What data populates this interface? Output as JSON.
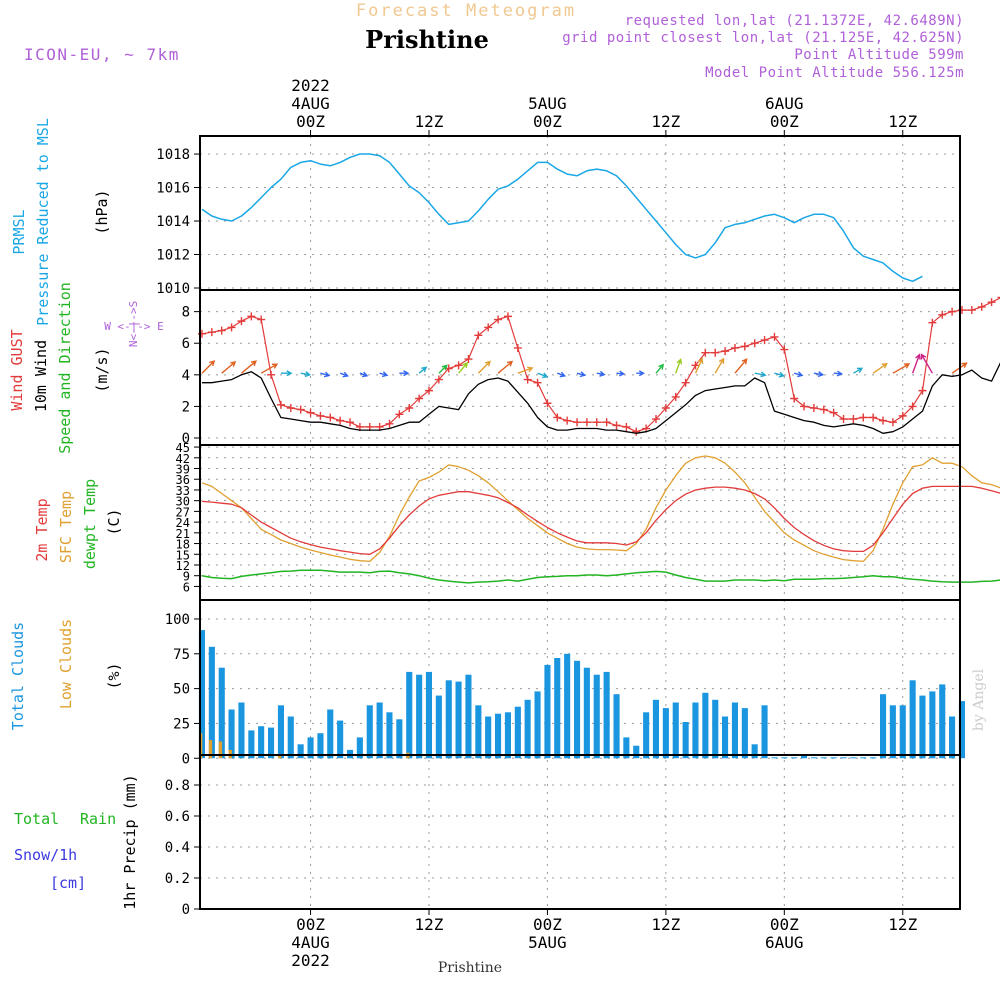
{
  "header": {
    "subtitle": "Forecast Meteogram",
    "location": "Prishtine",
    "model": "ICON-EU, ~ 7km",
    "requested": "requested lon,lat (21.1372E, 42.6489N)",
    "gridpoint": "grid point closest lon,lat (21.125E, 42.625N)",
    "point_altitude": "Point Altitude 599m",
    "model_altitude": "Model Point Altitude 556.125m",
    "footer_location": "Prishtine",
    "credit": "by Angel"
  },
  "colors": {
    "pressure": "#1aa7e6",
    "gust": "#e23b3b",
    "wind": "#000000",
    "direction": "#22b522",
    "temp2m": "#e23b3b",
    "sfc": "#e0a030",
    "dewpt": "#22b522",
    "total_clouds": "#1a96e0",
    "low_clouds": "#e0a030",
    "rain": "#22b522",
    "snow": "#3a3ae0",
    "header_purple": "#b060d8",
    "subtitle": "#f0c890",
    "credit": "#cccccc"
  },
  "time_axis": {
    "top": [
      {
        "t": 0,
        "label": "00Z",
        "date": "4AUG",
        "year": "2022"
      },
      {
        "t": 12,
        "label": "12Z"
      },
      {
        "t": 24,
        "label": "00Z",
        "date": "5AUG"
      },
      {
        "t": 36,
        "label": "12Z"
      },
      {
        "t": 48,
        "label": "00Z",
        "date": "6AUG"
      },
      {
        "t": 60,
        "label": "12Z"
      }
    ],
    "bottom": [
      {
        "t": 0,
        "label": "00Z",
        "date": "4AUG",
        "year": "2022"
      },
      {
        "t": 12,
        "label": "12Z"
      },
      {
        "t": 24,
        "label": "00Z",
        "date": "5AUG"
      },
      {
        "t": 36,
        "label": "12Z"
      },
      {
        "t": 48,
        "label": "00Z",
        "date": "6AUG"
      },
      {
        "t": 60,
        "label": "12Z"
      }
    ]
  },
  "chart_data": [
    {
      "type": "line",
      "id": "pressure",
      "title": "PRMSL Pressure Reduced to MSL",
      "ylabel": "(hPa)",
      "ylim": [
        1010,
        1018.6
      ],
      "yticks": [
        1010,
        1012,
        1014,
        1016,
        1018
      ],
      "series": [
        {
          "name": "PRMSL",
          "x0": -11,
          "dx": 1,
          "values": [
            1014.7,
            1014.3,
            1014.1,
            1014.0,
            1014.3,
            1014.8,
            1015.4,
            1016.0,
            1016.5,
            1017.2,
            1017.5,
            1017.6,
            1017.4,
            1017.3,
            1017.5,
            1017.8,
            1018.0,
            1018.0,
            1017.9,
            1017.5,
            1016.8,
            1016.1,
            1015.7,
            1015.1,
            1014.4,
            1013.8,
            1013.9,
            1014.0,
            1014.6,
            1015.3,
            1015.9,
            1016.1,
            1016.5,
            1017.0,
            1017.5,
            1017.5,
            1017.1,
            1016.8,
            1016.7,
            1017.0,
            1017.1,
            1017.0,
            1016.7,
            1016.1,
            1015.4,
            1014.7,
            1014.0,
            1013.3,
            1012.6,
            1012.0,
            1011.8,
            1012.0,
            1012.7,
            1013.6,
            1013.8,
            1013.9,
            1014.1,
            1014.3,
            1014.4,
            1014.2,
            1013.9,
            1014.2,
            1014.4,
            1014.4,
            1014.2,
            1013.4,
            1012.4,
            1011.9,
            1011.7,
            1011.5,
            1011.0,
            1010.6,
            1010.4,
            1010.7
          ]
        }
      ]
    },
    {
      "type": "line",
      "id": "wind",
      "title": "Wind GUST 10m Wind Speed and Direction",
      "ylabel": "(m/s)",
      "ylim": [
        0,
        8.8
      ],
      "yticks": [
        0,
        2,
        4,
        6,
        8
      ],
      "compass": "W <-|-> E   N <-|-> S",
      "series": [
        {
          "name": "Wind GUST",
          "x0": -11,
          "dx": 1,
          "values": [
            6.6,
            6.7,
            6.8,
            7.0,
            7.4,
            7.7,
            7.5,
            4.0,
            2.1,
            1.9,
            1.8,
            1.6,
            1.4,
            1.3,
            1.1,
            1.0,
            0.7,
            0.7,
            0.7,
            0.9,
            1.5,
            1.9,
            2.5,
            3.0,
            3.7,
            4.4,
            4.6,
            5.0,
            6.5,
            7.0,
            7.5,
            7.7,
            5.7,
            3.7,
            3.5,
            2.2,
            1.3,
            1.1,
            1.0,
            1.0,
            1.0,
            1.0,
            0.8,
            0.7,
            0.4,
            0.6,
            1.2,
            1.9,
            2.6,
            3.5,
            4.6,
            5.4,
            5.4,
            5.5,
            5.7,
            5.8,
            6.0,
            6.2,
            6.4,
            5.6,
            2.5,
            2.0,
            1.9,
            1.8,
            1.6,
            1.2,
            1.2,
            1.3,
            1.3,
            1.1,
            1.0,
            1.4,
            2.0,
            3.0,
            7.3,
            7.8,
            8.0,
            8.1,
            8.1,
            8.3,
            8.6,
            8.9,
            7.2
          ]
        },
        {
          "name": "10m Wind",
          "x0": -11,
          "dx": 1,
          "values": [
            3.5,
            3.5,
            3.6,
            3.7,
            4.0,
            4.2,
            3.8,
            2.5,
            1.3,
            1.2,
            1.1,
            1.0,
            1.0,
            0.9,
            0.8,
            0.6,
            0.5,
            0.5,
            0.5,
            0.6,
            0.8,
            1.0,
            1.0,
            1.5,
            2.0,
            1.9,
            1.8,
            2.8,
            3.4,
            3.7,
            3.8,
            3.6,
            2.9,
            2.2,
            1.3,
            0.7,
            0.5,
            0.5,
            0.6,
            0.6,
            0.6,
            0.5,
            0.5,
            0.4,
            0.3,
            0.4,
            0.6,
            1.1,
            1.6,
            2.1,
            2.7,
            3.0,
            3.1,
            3.2,
            3.3,
            3.3,
            3.8,
            3.5,
            1.7,
            1.5,
            1.3,
            1.1,
            1.0,
            0.8,
            0.7,
            0.8,
            0.9,
            0.8,
            0.6,
            0.3,
            0.4,
            0.7,
            1.2,
            1.7,
            3.3,
            4.0,
            3.9,
            4.0,
            4.3,
            3.8,
            3.6,
            4.9,
            4.0
          ]
        }
      ],
      "directions": [
        {
          "t": -11,
          "deg": 225,
          "speed": 3.5
        },
        {
          "t": -9,
          "deg": 230,
          "speed": 3.6
        },
        {
          "t": -7,
          "deg": 230,
          "speed": 4.0
        },
        {
          "t": -5,
          "deg": 240,
          "speed": 3.8
        },
        {
          "t": -3,
          "deg": 270,
          "speed": 1.3
        },
        {
          "t": -1,
          "deg": 280,
          "speed": 1.0
        },
        {
          "t": 1,
          "deg": 285,
          "speed": 0.9
        },
        {
          "t": 3,
          "deg": 290,
          "speed": 0.6
        },
        {
          "t": 5,
          "deg": 290,
          "speed": 0.5
        },
        {
          "t": 7,
          "deg": 285,
          "speed": 0.5
        },
        {
          "t": 9,
          "deg": 270,
          "speed": 0.8
        },
        {
          "t": 11,
          "deg": 230,
          "speed": 1.0
        },
        {
          "t": 13,
          "deg": 225,
          "speed": 1.6
        },
        {
          "t": 15,
          "deg": 220,
          "speed": 2.3
        },
        {
          "t": 17,
          "deg": 225,
          "speed": 3.3
        },
        {
          "t": 19,
          "deg": 230,
          "speed": 3.8
        },
        {
          "t": 21,
          "deg": 250,
          "speed": 2.9
        },
        {
          "t": 23,
          "deg": 290,
          "speed": 1.3
        },
        {
          "t": 25,
          "deg": 290,
          "speed": 0.6
        },
        {
          "t": 27,
          "deg": 285,
          "speed": 0.6
        },
        {
          "t": 29,
          "deg": 280,
          "speed": 0.5
        },
        {
          "t": 31,
          "deg": 275,
          "speed": 0.4
        },
        {
          "t": 33,
          "deg": 270,
          "speed": 0.4
        },
        {
          "t": 35,
          "deg": 220,
          "speed": 1.6
        },
        {
          "t": 37,
          "deg": 200,
          "speed": 2.7
        },
        {
          "t": 39,
          "deg": 205,
          "speed": 3.1
        },
        {
          "t": 41,
          "deg": 210,
          "speed": 3.3
        },
        {
          "t": 43,
          "deg": 220,
          "speed": 3.8
        },
        {
          "t": 45,
          "deg": 280,
          "speed": 1.5
        },
        {
          "t": 47,
          "deg": 285,
          "speed": 1.1
        },
        {
          "t": 49,
          "deg": 285,
          "speed": 0.7
        },
        {
          "t": 51,
          "deg": 280,
          "speed": 0.9
        },
        {
          "t": 53,
          "deg": 275,
          "speed": 0.6
        },
        {
          "t": 55,
          "deg": 240,
          "speed": 1.2
        },
        {
          "t": 57,
          "deg": 235,
          "speed": 3.3
        },
        {
          "t": 59,
          "deg": 240,
          "speed": 3.9
        },
        {
          "t": 61,
          "deg": 200,
          "speed": 4.3
        },
        {
          "t": 63,
          "deg": 150,
          "speed": 4.9
        },
        {
          "t": 65,
          "deg": 235,
          "speed": 3.6
        }
      ]
    },
    {
      "type": "line",
      "id": "temperature",
      "title": "2m Temp SFC Temp dewpt Temp",
      "ylabel": "(C)",
      "ylim": [
        5,
        45.3
      ],
      "yticks": [
        6,
        9,
        12,
        15,
        18,
        21,
        24,
        27,
        30,
        33,
        36,
        39,
        42,
        45
      ],
      "series": [
        {
          "name": "2m Temp",
          "x0": -11,
          "dx": 1,
          "values": [
            29.8,
            29.6,
            29.3,
            29.0,
            28.0,
            26.0,
            24.0,
            22.5,
            21.0,
            19.5,
            18.5,
            17.7,
            17.0,
            16.5,
            16.0,
            15.6,
            15.2,
            15.0,
            16.5,
            19.5,
            23.0,
            26.0,
            28.5,
            30.5,
            31.5,
            32.0,
            32.5,
            32.5,
            32.0,
            31.5,
            30.8,
            29.5,
            28.0,
            26.0,
            24.2,
            22.5,
            21.0,
            19.8,
            18.7,
            18.2,
            18.2,
            18.2,
            18.0,
            17.6,
            18.5,
            21.0,
            24.5,
            27.5,
            30.0,
            31.8,
            33.0,
            33.5,
            33.8,
            33.8,
            33.5,
            33.0,
            32.0,
            30.5,
            28.0,
            25.0,
            22.5,
            20.5,
            18.8,
            17.5,
            16.5,
            16.0,
            15.8,
            15.8,
            17.5,
            21.0,
            25.0,
            29.0,
            32.0,
            33.5,
            34.0,
            34.0,
            34.0,
            34.0,
            34.0,
            33.5,
            32.8,
            32.0,
            31.0
          ]
        },
        {
          "name": "SFC Temp",
          "x0": -11,
          "dx": 1,
          "values": [
            35.0,
            34.0,
            32.0,
            30.0,
            28.0,
            25.0,
            22.0,
            20.5,
            19.0,
            18.0,
            17.0,
            16.2,
            15.5,
            14.8,
            14.2,
            13.6,
            13.2,
            13.0,
            15.5,
            20.0,
            26.0,
            31.0,
            35.5,
            36.5,
            38.0,
            40.0,
            39.5,
            38.5,
            37.0,
            35.0,
            32.5,
            30.0,
            27.5,
            25.0,
            23.0,
            21.0,
            19.5,
            18.0,
            17.0,
            16.5,
            16.3,
            16.3,
            16.2,
            16.0,
            18.0,
            22.0,
            28.0,
            33.0,
            37.0,
            40.5,
            42.0,
            42.5,
            42.0,
            40.5,
            38.0,
            35.0,
            31.0,
            27.0,
            24.0,
            21.0,
            19.0,
            17.5,
            16.0,
            15.0,
            14.2,
            13.5,
            13.2,
            13.0,
            16.0,
            22.0,
            29.0,
            35.0,
            39.5,
            40.0,
            42.0,
            40.5,
            40.5,
            39.5,
            37.0,
            35.0,
            34.5,
            33.5,
            31.0
          ]
        },
        {
          "name": "dewpt Temp",
          "x0": -11,
          "dx": 1,
          "values": [
            9.0,
            8.5,
            8.3,
            8.2,
            8.8,
            9.2,
            9.5,
            9.8,
            10.2,
            10.3,
            10.5,
            10.5,
            10.5,
            10.3,
            10.0,
            10.0,
            10.0,
            9.8,
            10.2,
            10.3,
            9.8,
            9.5,
            9.0,
            8.3,
            7.8,
            7.5,
            7.2,
            7.0,
            7.2,
            7.3,
            7.5,
            7.8,
            7.5,
            8.0,
            8.5,
            8.7,
            8.8,
            9.0,
            9.0,
            9.2,
            9.2,
            9.0,
            9.2,
            9.5,
            9.8,
            10.0,
            10.2,
            10.0,
            9.2,
            8.5,
            8.0,
            7.5,
            7.5,
            7.5,
            7.8,
            7.8,
            7.8,
            7.6,
            7.8,
            7.6,
            8.0,
            8.0,
            8.0,
            8.2,
            8.2,
            8.3,
            8.5,
            8.7,
            9.0,
            8.7,
            8.7,
            8.3,
            8.0,
            7.8,
            7.5,
            7.3,
            7.2,
            7.2,
            7.2,
            7.4,
            7.5,
            7.8,
            8.5
          ]
        }
      ]
    },
    {
      "type": "bar",
      "id": "clouds",
      "title": "Total Clouds Low Clouds",
      "ylabel": "(%)",
      "ylim": [
        -7,
        105
      ],
      "yticks": [
        0,
        25,
        50,
        75,
        100
      ],
      "series": [
        {
          "name": "Total Clouds",
          "x0": -11,
          "dx": 1,
          "values": [
            92,
            80,
            65,
            35,
            40,
            20,
            23,
            22,
            38,
            30,
            10,
            15,
            18,
            35,
            27,
            6,
            15,
            38,
            40,
            33,
            28,
            62,
            60,
            62,
            45,
            56,
            55,
            60,
            38,
            30,
            32,
            33,
            37,
            42,
            48,
            67,
            72,
            75,
            70,
            65,
            60,
            62,
            46,
            15,
            9,
            33,
            42,
            36,
            40,
            26,
            40,
            47,
            42,
            30,
            40,
            36,
            10,
            38,
            0,
            0,
            0,
            3,
            0,
            0,
            0,
            0,
            0,
            0,
            0,
            46,
            38,
            38,
            56,
            45,
            48,
            53,
            30,
            41
          ]
        },
        {
          "name": "Low Clouds",
          "x0": -11,
          "dx": 1,
          "values": [
            18,
            13,
            12,
            6,
            0,
            0,
            0,
            0,
            2,
            0,
            0,
            0,
            0,
            0,
            0,
            0,
            0,
            0,
            0,
            0,
            0,
            4,
            0,
            0,
            0,
            0,
            0,
            0,
            0,
            0,
            0,
            0,
            0,
            0,
            0,
            0,
            0,
            0,
            0,
            0,
            0,
            0,
            0,
            0,
            0,
            0,
            0,
            0,
            0,
            0,
            0,
            0,
            0,
            0,
            0,
            0,
            0,
            0,
            0,
            0,
            0,
            0,
            0,
            0,
            0,
            0,
            0,
            0,
            0,
            0,
            0,
            0,
            0,
            0,
            0,
            0,
            0,
            0
          ]
        }
      ]
    },
    {
      "type": "bar",
      "id": "precip",
      "title": "Total Rain Snow/1h [cm]",
      "ylabel": "1hr Precip (mm)",
      "ylim": [
        0,
        1.0
      ],
      "yticks": [
        0,
        0.2,
        0.4,
        0.6,
        0.8
      ],
      "series": [
        {
          "name": "Total Rain",
          "values": []
        },
        {
          "name": "Snow/1h",
          "values": []
        }
      ]
    }
  ],
  "labels": {
    "pressure": {
      "line1": "PRMSL",
      "line2": "Pressure Reduced to MSL",
      "unit": "(hPa)"
    },
    "wind": {
      "gust": "Wind GUST",
      "wind": "10m Wind",
      "dir": "Speed and Direction",
      "unit": "(m/s)"
    },
    "temp": {
      "t2m": "2m Temp",
      "sfc": "SFC Temp",
      "dew": "dewpt Temp",
      "unit": "(C)"
    },
    "clouds": {
      "total": "Total Clouds",
      "low": "Low Clouds",
      "unit": "(%)"
    },
    "precip": {
      "rain1": "Total",
      "rain2": "Rain",
      "snow": "Snow/1h",
      "cm": "[cm]",
      "unit": "1hr Precip (mm)"
    }
  }
}
